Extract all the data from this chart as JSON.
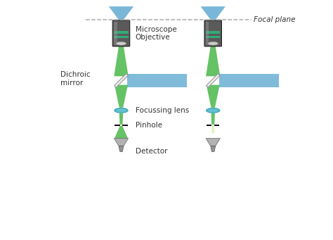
{
  "bg_color": "#ffffff",
  "focal_plane_label": "Focal plane",
  "labels": {
    "microscope_objective": "Microscope\nObjective",
    "dichroic_mirror": "Dichroic\nmirror",
    "focussing_lens": "Focussing lens",
    "pinhole": "Pinhole",
    "detector": "Detector"
  },
  "blue_color": "#6ab0d4",
  "green_color": "#4ab84a",
  "green_light_color": "#ccee99",
  "lens_color": "#55bbcc",
  "label_color": "#333333",
  "label_fontsize": 7.5,
  "dashed_color": "#aaaaaa"
}
